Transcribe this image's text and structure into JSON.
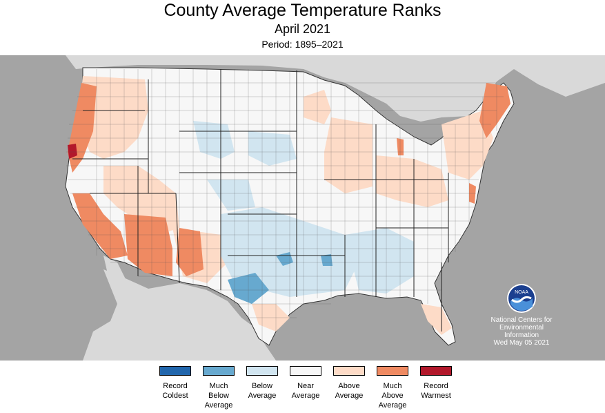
{
  "header": {
    "title": "County Average Temperature Ranks",
    "subtitle": "April 2021",
    "period": "Period: 1895–2021"
  },
  "map": {
    "background_color": "#a4a4a4",
    "land_color": "#d9d9d9",
    "water_color": "#a4a4a4",
    "border_color": "#333333"
  },
  "attribution": {
    "logo_icon": "noaa-logo-icon",
    "logo_text": "NOAA",
    "line1": "National Centers for",
    "line2": "Environmental",
    "line3": "Information",
    "date": "Wed May 05 2021"
  },
  "legend": {
    "items": [
      {
        "label": "Record\nColdest",
        "color": "#2166ac"
      },
      {
        "label": "Much\nBelow\nAverage",
        "color": "#67a9cf"
      },
      {
        "label": "Below\nAverage",
        "color": "#d1e5f0"
      },
      {
        "label": "Near\nAverage",
        "color": "#f7f7f7"
      },
      {
        "label": "Above\nAverage",
        "color": "#fddbc7"
      },
      {
        "label": "Much\nAbove\nAverage",
        "color": "#ef8a62"
      },
      {
        "label": "Record\nWarmest",
        "color": "#b2182b"
      }
    ]
  }
}
